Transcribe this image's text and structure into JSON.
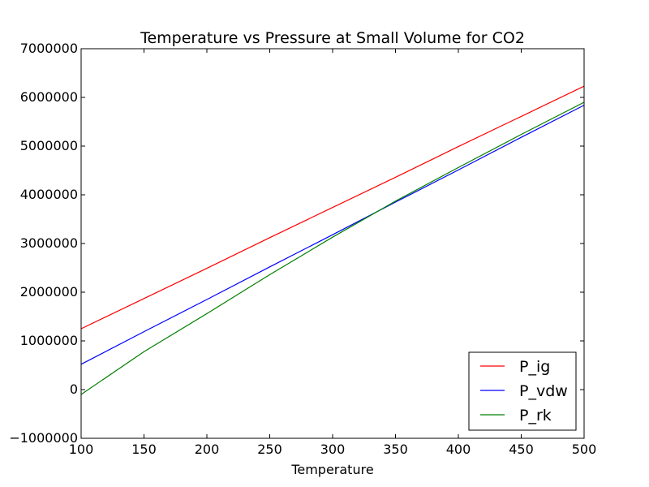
{
  "chart_data": {
    "type": "line",
    "title": "Temperature vs Pressure at Small Volume for CO2",
    "xlabel": "Temperature",
    "ylabel": "",
    "xlim": [
      100,
      500
    ],
    "ylim": [
      -1000000,
      7000000
    ],
    "xticks": [
      "100",
      "150",
      "200",
      "250",
      "300",
      "350",
      "400",
      "450",
      "500"
    ],
    "yticks": [
      "−1000000",
      "0",
      "1000000",
      "2000000",
      "3000000",
      "4000000",
      "5000000",
      "6000000",
      "7000000"
    ],
    "legend_position": "lower-right",
    "x": [
      100,
      150,
      200,
      250,
      300,
      350,
      400,
      450,
      500
    ],
    "series": [
      {
        "name": "P_ig",
        "color": "#ff0000",
        "values": [
          1250000,
          1870000,
          2490000,
          3120000,
          3740000,
          4360000,
          4990000,
          5610000,
          6230000
        ]
      },
      {
        "name": "P_vdw",
        "color": "#0000ff",
        "values": [
          520000,
          1190000,
          1850000,
          2520000,
          3180000,
          3850000,
          4510000,
          5180000,
          5840000
        ]
      },
      {
        "name": "P_rk",
        "color": "#008000",
        "values": [
          -100000,
          780000,
          1560000,
          2360000,
          3130000,
          3870000,
          4560000,
          5240000,
          5900000
        ]
      }
    ]
  }
}
